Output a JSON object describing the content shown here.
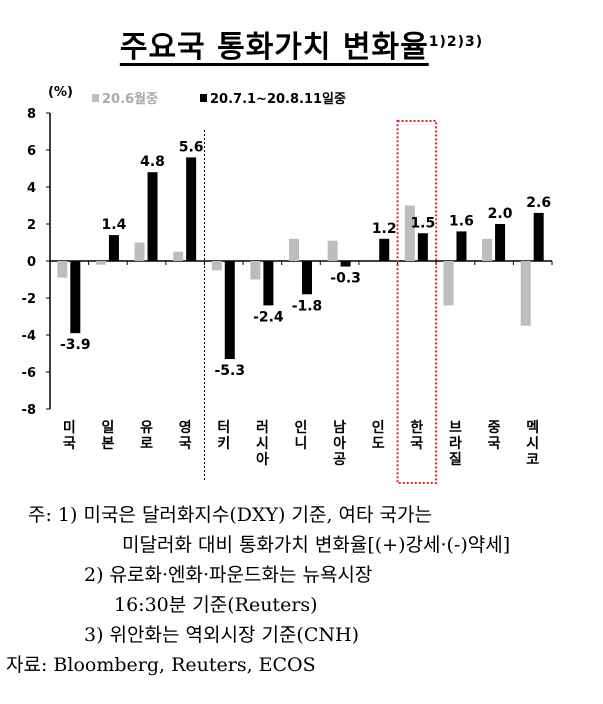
{
  "chart_data": {
    "type": "bar",
    "title": "주요국 통화가치 변화율",
    "title_sup": "1)2)3)",
    "ylabel": "(%)",
    "ylim": [
      -8,
      8
    ],
    "yticks": [
      8,
      6,
      4,
      2,
      0,
      -2,
      -4,
      -6,
      -8
    ],
    "categories": [
      [
        "미",
        "국"
      ],
      [
        "일",
        "본"
      ],
      [
        "유",
        "로"
      ],
      [
        "영",
        "국"
      ],
      [
        "터",
        "키"
      ],
      [
        "러",
        "시",
        "아"
      ],
      [
        "인",
        "니"
      ],
      [
        "남",
        "아",
        "공"
      ],
      [
        "인",
        "도"
      ],
      [
        "한",
        "국"
      ],
      [
        "브",
        "라",
        "질"
      ],
      [
        "중",
        "국"
      ],
      [
        "멕",
        "시",
        "코"
      ]
    ],
    "series": [
      {
        "name": "20.6월중",
        "color": "#bdbdbd",
        "values": [
          -0.9,
          -0.2,
          1.0,
          0.5,
          -0.5,
          -1.0,
          1.2,
          1.1,
          0.0,
          3.0,
          -2.4,
          1.2,
          -3.5
        ]
      },
      {
        "name": "20.7.1~20.8.11일중",
        "color": "#000000",
        "values": [
          -3.9,
          1.4,
          4.8,
          5.6,
          -5.3,
          -2.4,
          -1.8,
          -0.3,
          1.2,
          1.5,
          1.6,
          2.0,
          2.6
        ],
        "labels": [
          "-3.9",
          "1.4",
          "4.8",
          "5.6",
          "-5.3",
          "-2.4",
          "-1.8",
          "-0.3",
          "1.2",
          "1.5",
          "1.6",
          "2.0",
          "2.6"
        ]
      }
    ],
    "highlight_category": "한국",
    "divider_after": "영국",
    "legend": "top"
  },
  "notes": {
    "n1a": "주:  1)  미국은 달러화지수(DXY) 기준, 여타 국가는",
    "n1b": "미달러화 대비 통화가치 변화율[(+)강세·(-)약세]",
    "n2a": "2)  유로화·엔화·파운드화는 뉴욕시장",
    "n2b": "16:30분 기준(Reuters)",
    "n3": "3)  위안화는 역외시장 기준(CNH)",
    "source": "자료:  Bloomberg,  Reuters,  ECOS"
  }
}
